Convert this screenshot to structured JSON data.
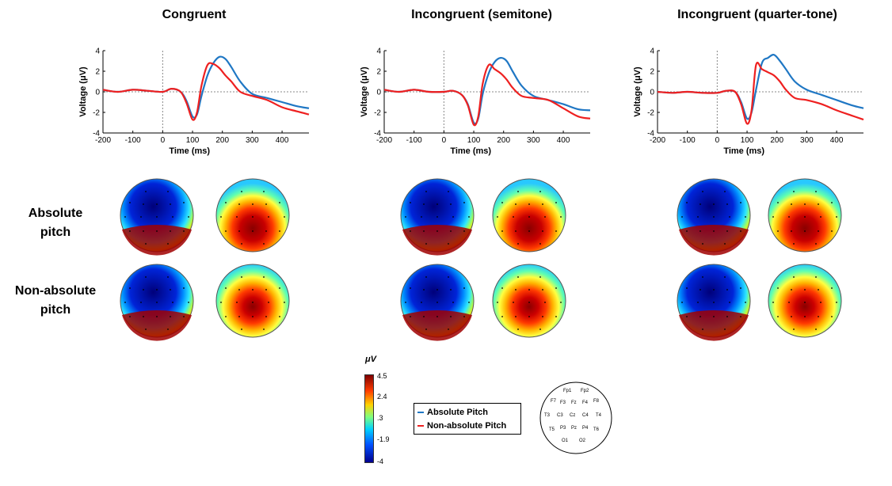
{
  "panels": [
    {
      "title": "Congruent"
    },
    {
      "title": "Incongruent (semitone)"
    },
    {
      "title": "Incongruent (quarter-tone)"
    }
  ],
  "row_labels": [
    {
      "line1": "Absolute",
      "line2": "pitch"
    },
    {
      "line1": "Non-absolute",
      "line2": "pitch"
    }
  ],
  "axes": {
    "ylabel": "Voltage (μV)",
    "xlabel": "Time (ms)",
    "xticks": [
      "-200",
      "-100",
      "0",
      "100",
      "200",
      "300",
      "400"
    ],
    "yticks": [
      "4",
      "2",
      "0",
      "-2",
      "-4"
    ]
  },
  "legend": {
    "absolute": "Absolute Pitch",
    "nonabsolute": "Non-absolute Pitch"
  },
  "colors": {
    "absolute": "#1f77c4",
    "nonabsolute": "#ee2020"
  },
  "colorbar": {
    "unit": "μV",
    "ticks": [
      "4.5",
      "2.4",
      ".3",
      "-1.9",
      "-4"
    ]
  },
  "electrode_labels": [
    "Fp1",
    "Fp2",
    "F7",
    "F3",
    "Fz",
    "F4",
    "F8",
    "T3",
    "C3",
    "Cz",
    "C4",
    "T4",
    "T5",
    "P3",
    "Pz",
    "P4",
    "T6",
    "O1",
    "O2"
  ],
  "chart_data": [
    {
      "type": "line",
      "title": "Congruent",
      "xlabel": "Time (ms)",
      "ylabel": "Voltage (μV)",
      "xlim": [
        -200,
        490
      ],
      "ylim": [
        -4,
        4
      ],
      "x": [
        -200,
        -150,
        -100,
        -50,
        0,
        30,
        60,
        80,
        100,
        115,
        130,
        150,
        170,
        190,
        210,
        230,
        260,
        300,
        350,
        400,
        450,
        490
      ],
      "series": [
        {
          "name": "Absolute Pitch",
          "values": [
            0.2,
            0.0,
            0.2,
            0.1,
            0.0,
            0.3,
            0.0,
            -0.9,
            -2.4,
            -2.2,
            -0.4,
            1.6,
            2.8,
            3.4,
            3.2,
            2.4,
            1.0,
            -0.2,
            -0.6,
            -1.0,
            -1.4,
            -1.6
          ]
        },
        {
          "name": "Non-absolute Pitch",
          "values": [
            0.2,
            0.0,
            0.2,
            0.1,
            0.0,
            0.3,
            0.0,
            -1.1,
            -2.7,
            -2.0,
            0.6,
            2.6,
            2.7,
            2.3,
            1.6,
            1.0,
            0.0,
            -0.4,
            -0.8,
            -1.5,
            -1.9,
            -2.2
          ]
        }
      ]
    },
    {
      "type": "line",
      "title": "Incongruent (semitone)",
      "xlabel": "Time (ms)",
      "ylabel": "Voltage (μV)",
      "xlim": [
        -200,
        490
      ],
      "ylim": [
        -4,
        4
      ],
      "x": [
        -200,
        -150,
        -100,
        -50,
        0,
        30,
        60,
        80,
        100,
        115,
        130,
        150,
        170,
        190,
        210,
        230,
        260,
        300,
        350,
        400,
        450,
        490
      ],
      "series": [
        {
          "name": "Absolute Pitch",
          "values": [
            0.2,
            0.0,
            0.2,
            0.0,
            0.0,
            0.1,
            -0.3,
            -1.2,
            -3.0,
            -2.6,
            -0.2,
            1.8,
            2.9,
            3.3,
            3.0,
            2.0,
            0.6,
            -0.4,
            -0.8,
            -1.2,
            -1.7,
            -1.8
          ]
        },
        {
          "name": "Non-absolute Pitch",
          "values": [
            0.2,
            0.0,
            0.2,
            0.0,
            0.0,
            0.1,
            -0.3,
            -1.3,
            -3.2,
            -2.4,
            0.8,
            2.6,
            2.2,
            1.8,
            1.2,
            0.4,
            -0.4,
            -0.6,
            -0.8,
            -1.6,
            -2.4,
            -2.6
          ]
        }
      ]
    },
    {
      "type": "line",
      "title": "Incongruent (quarter-tone)",
      "xlabel": "Time (ms)",
      "ylabel": "Voltage (μV)",
      "xlim": [
        -200,
        490
      ],
      "ylim": [
        -4,
        4
      ],
      "x": [
        -200,
        -150,
        -100,
        -50,
        0,
        30,
        60,
        80,
        100,
        115,
        130,
        150,
        170,
        190,
        210,
        230,
        260,
        300,
        350,
        400,
        450,
        490
      ],
      "series": [
        {
          "name": "Absolute Pitch",
          "values": [
            0.0,
            -0.1,
            0.0,
            -0.1,
            -0.1,
            0.1,
            0.0,
            -1.0,
            -2.6,
            -2.0,
            0.2,
            2.8,
            3.3,
            3.6,
            3.0,
            2.2,
            1.0,
            0.2,
            -0.3,
            -0.8,
            -1.3,
            -1.6
          ]
        },
        {
          "name": "Non-absolute Pitch",
          "values": [
            0.0,
            -0.1,
            0.0,
            -0.1,
            -0.1,
            0.1,
            0.0,
            -1.2,
            -3.1,
            -1.8,
            2.6,
            2.2,
            1.9,
            1.6,
            1.0,
            0.2,
            -0.6,
            -0.8,
            -1.2,
            -1.8,
            -2.3,
            -2.7
          ]
        }
      ]
    }
  ]
}
